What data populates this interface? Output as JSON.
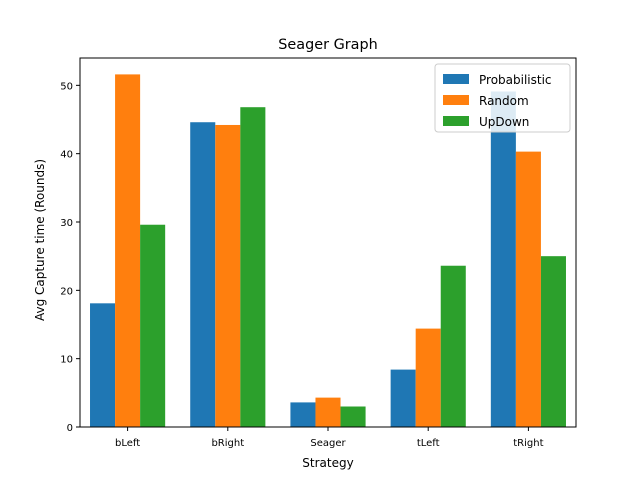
{
  "chart_data": {
    "type": "bar",
    "title": "Seager Graph",
    "xlabel": "Strategy",
    "ylabel": "Avg Capture time (Rounds)",
    "categories": [
      "bLeft",
      "bRight",
      "Seager",
      "tLeft",
      "tRight"
    ],
    "ylim": [
      0,
      54
    ],
    "yticks": [
      0,
      10,
      20,
      30,
      40,
      50
    ],
    "grid": false,
    "legend_position": "top-right",
    "series": [
      {
        "name": "Probabilistic",
        "color": "#1f77b4",
        "values": [
          18.1,
          44.6,
          3.6,
          8.4,
          49.1
        ]
      },
      {
        "name": "Random",
        "color": "#ff7f0e",
        "values": [
          51.6,
          44.2,
          4.3,
          14.4,
          40.3
        ]
      },
      {
        "name": "UpDown",
        "color": "#2ca02c",
        "values": [
          29.6,
          46.8,
          3.0,
          23.6,
          25.0
        ]
      }
    ]
  }
}
